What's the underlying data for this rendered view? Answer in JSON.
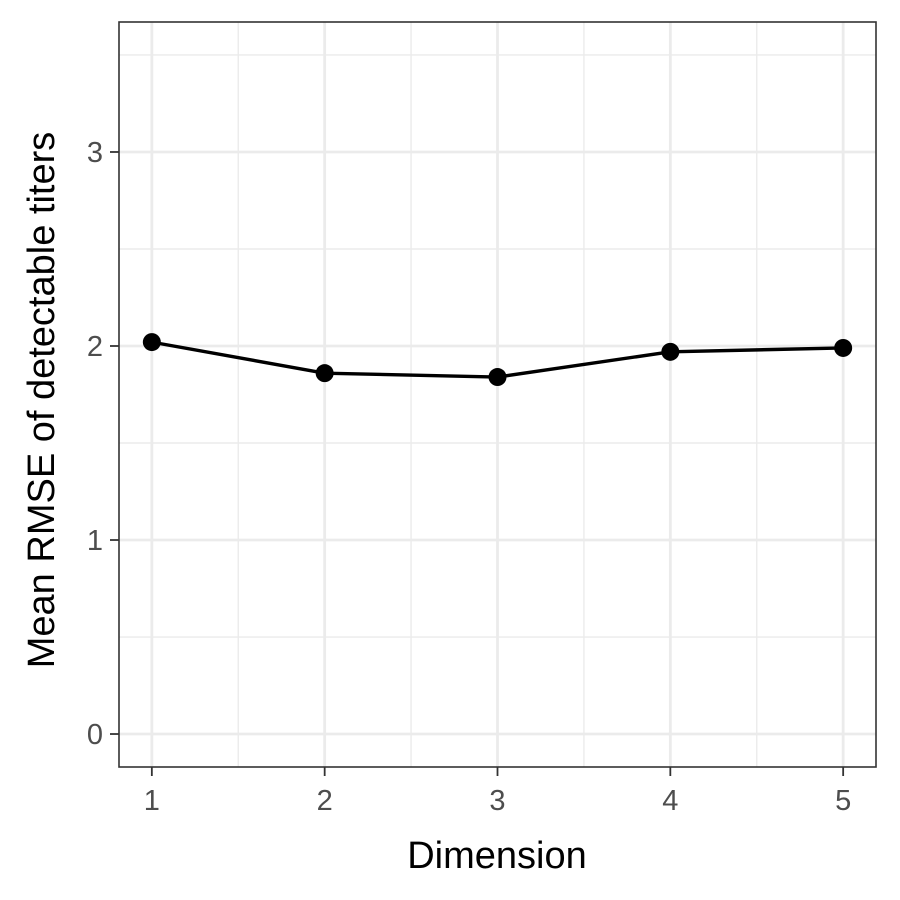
{
  "chart_data": {
    "type": "line",
    "title": "",
    "xlabel": "Dimension",
    "ylabel": "Mean RMSE of detectable titers",
    "x": [
      1,
      2,
      3,
      4,
      5
    ],
    "series": [
      {
        "values": [
          2.02,
          1.86,
          1.84,
          1.97,
          1.99
        ]
      }
    ],
    "xlim": [
      0.81,
      5.19
    ],
    "ylim": [
      -0.17,
      3.67
    ],
    "x_ticks": [
      1,
      2,
      3,
      4,
      5
    ],
    "y_ticks": [
      0,
      1,
      2,
      3
    ],
    "x_minor": [
      1.5,
      2.5,
      3.5,
      4.5
    ],
    "y_minor": [
      0.5,
      1.5,
      2.5,
      3.5
    ],
    "grid": true,
    "legend": "none",
    "colors": {
      "line": "#000000",
      "point": "#000000",
      "grid": "#ebebeb",
      "panel_border": "#333333",
      "tick_label": "#4d4d4d"
    }
  }
}
